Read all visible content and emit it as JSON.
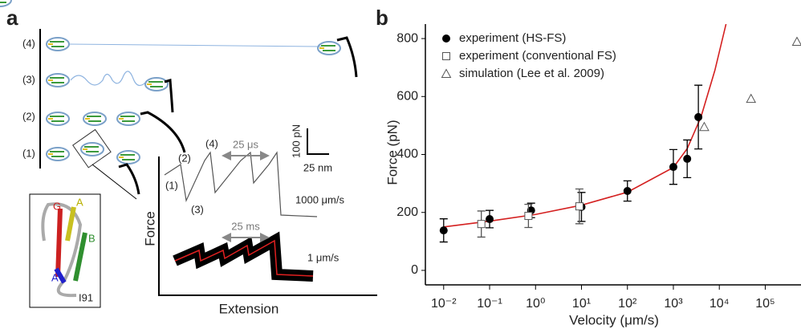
{
  "panel_a": {
    "label": "a",
    "rows": [
      "(4)",
      "(3)",
      "(2)",
      "(1)"
    ],
    "strands": [
      "G",
      "A",
      "B",
      "A"
    ],
    "domain": "I91",
    "peaks": [
      "(1)",
      "(2)",
      "(3)",
      "(4)"
    ],
    "fast_interval": "25 μs",
    "slow_interval": "25 ms",
    "scale_force": "100 pN",
    "scale_ext": "25 nm",
    "fast_speed": "1000 μm/s",
    "slow_speed": "1 μm/s",
    "ylabel": "Force",
    "xlabel": "Extension"
  },
  "chart_data": {
    "type": "scatter",
    "panel": "b",
    "xlabel": "Velocity (μm/s)",
    "ylabel": "Force (pN)",
    "xscale": "log",
    "xlim": [
      0.004,
      600000
    ],
    "ylim": [
      -50,
      850
    ],
    "xticks": [
      {
        "value": 0.01,
        "label": "10⁻²"
      },
      {
        "value": 0.1,
        "label": "10⁻¹"
      },
      {
        "value": 1,
        "label": "10⁰"
      },
      {
        "value": 10,
        "label": "10¹"
      },
      {
        "value": 100,
        "label": "10²"
      },
      {
        "value": 1000,
        "label": "10³"
      },
      {
        "value": 10000,
        "label": "10⁴"
      },
      {
        "value": 100000,
        "label": "10⁵"
      }
    ],
    "yticks": [
      0,
      200,
      400,
      600,
      800
    ],
    "legend": "upper left",
    "series": [
      {
        "name": "experiment (HS-FS)",
        "marker": "circle",
        "color": "#000000",
        "x": [
          0.01,
          0.1,
          0.8,
          10,
          100,
          1000,
          2000,
          3500
        ],
        "values": [
          138,
          177,
          207,
          219,
          274,
          357,
          385,
          529
        ],
        "errors": [
          40,
          30,
          25,
          50,
          35,
          60,
          65,
          110
        ]
      },
      {
        "name": "experiment (conventional FS)",
        "marker": "square",
        "color": "#555555",
        "x": [
          0.066,
          0.7,
          9
        ],
        "values": [
          160,
          188,
          221
        ],
        "errors": [
          45,
          40,
          60
        ]
      },
      {
        "name": "simulation (Lee et al. 2009)",
        "marker": "triangle",
        "color": "#555555",
        "x": [
          4700,
          49000,
          490000
        ],
        "values": [
          495,
          592,
          789
        ]
      }
    ],
    "fit": {
      "color": "#d42020",
      "x": [
        0.01,
        0.1,
        1,
        10,
        100,
        1000,
        2000,
        4000,
        8000,
        14000
      ],
      "values": [
        150,
        170,
        193,
        225,
        270,
        355,
        420,
        530,
        690,
        850
      ]
    }
  }
}
